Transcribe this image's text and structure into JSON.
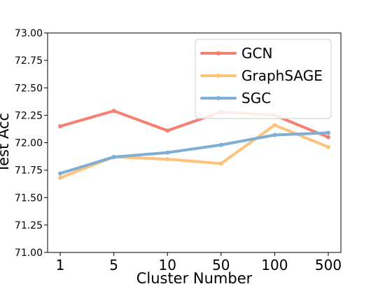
{
  "chart_data": {
    "type": "line",
    "title": "",
    "xlabel": "Cluster Number",
    "ylabel": "Test Acc",
    "categories": [
      "1",
      "5",
      "10",
      "50",
      "100",
      "500"
    ],
    "ylim": [
      71.0,
      73.0
    ],
    "yticks": [
      "71.00",
      "71.25",
      "71.50",
      "71.75",
      "72.00",
      "72.25",
      "72.50",
      "72.75",
      "73.00"
    ],
    "grid": false,
    "legend_position": "top-right",
    "series": [
      {
        "name": "GCN",
        "color": "#f47f73",
        "values": [
          72.15,
          72.29,
          72.11,
          72.28,
          72.25,
          72.05
        ]
      },
      {
        "name": "GraphSAGE",
        "color": "#fdc27c",
        "values": [
          71.68,
          71.87,
          71.85,
          71.81,
          72.16,
          71.96
        ]
      },
      {
        "name": "SGC",
        "color": "#7eaed4",
        "values": [
          71.72,
          71.87,
          71.91,
          71.98,
          72.07,
          72.09
        ]
      }
    ]
  }
}
